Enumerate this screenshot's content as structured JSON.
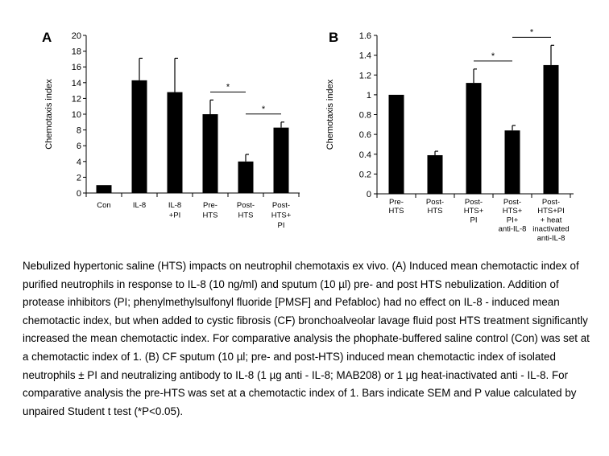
{
  "chart_data": [
    {
      "type": "bar",
      "panel_label": "A",
      "ylabel": "Chemotaxis index",
      "ylim": [
        0,
        20
      ],
      "yticks": [
        "0",
        "2",
        "4",
        "6",
        "8",
        "10",
        "12",
        "14",
        "16",
        "18",
        "20"
      ],
      "categories": [
        [
          "Con"
        ],
        [
          "IL-8"
        ],
        [
          "IL-8",
          "+PI"
        ],
        [
          "Pre-",
          "HTS"
        ],
        [
          "Post-",
          "HTS"
        ],
        [
          "Post-",
          "HTS+",
          "PI"
        ]
      ],
      "values": [
        1.0,
        14.3,
        12.8,
        10.0,
        4.0,
        8.3
      ],
      "errors": [
        0,
        2.8,
        4.3,
        1.8,
        0.9,
        0.7
      ],
      "significance": [
        {
          "from": 3,
          "to": 4,
          "label": "*"
        },
        {
          "from": 4,
          "to": 5,
          "label": "*"
        }
      ]
    },
    {
      "type": "bar",
      "panel_label": "B",
      "ylabel": "Chemotaxis index",
      "ylim": [
        0,
        1.6
      ],
      "yticks": [
        "0",
        "0.2",
        "0.4",
        "0.6",
        "0.8",
        "1",
        "1.2",
        "1.4",
        "1.6"
      ],
      "categories": [
        [
          "Pre-",
          "HTS"
        ],
        [
          "Post-",
          "HTS"
        ],
        [
          "Post-",
          "HTS+",
          "PI"
        ],
        [
          "Post-",
          "HTS+",
          "PI+",
          "anti-IL-8"
        ],
        [
          "Post-",
          "HTS+PI",
          "+ heat",
          "inactivated",
          "anti-IL-8"
        ]
      ],
      "values": [
        1.0,
        0.39,
        1.12,
        0.64,
        1.3
      ],
      "errors": [
        0,
        0.04,
        0.14,
        0.05,
        0.2
      ],
      "significance": [
        {
          "from": 2,
          "to": 3,
          "label": "*"
        },
        {
          "from": 3,
          "to": 4,
          "label": "*"
        }
      ]
    }
  ],
  "caption": {
    "text": "Nebulized hypertonic saline (HTS) impacts on neutrophil chemotaxis ex vivo. (A) Induced mean chemotactic index of purified neutrophils in response to IL-8 (10 ng/ml) and sputum (10 µl) pre- and post HTS nebulization. Addition of protease inhibitors (PI; phenylmethylsulfonyl fluoride [PMSF] and Pefabloc) had no effect on IL-8 - induced mean chemotactic index, but when added to cystic fibrosis (CF) bronchoalveolar lavage fluid post HTS treatment significantly increased the mean chemotactic index. For comparative analysis the phophate-buffered saline control (Con) was set at a chemotactic index of 1. (B) CF sputum (10 µl; pre- and post-HTS) induced mean chemotactic index of isolated neutrophils ± PI and neutralizing antibody to IL-8 (1 µg anti - IL-8; MAB208) or 1 µg heat-inactivated anti - IL-8. For comparative analysis the pre-HTS was set at a chemotactic index of 1. Bars indicate SEM and P value calculated by unpaired Student t test (*P<0.05)."
  }
}
